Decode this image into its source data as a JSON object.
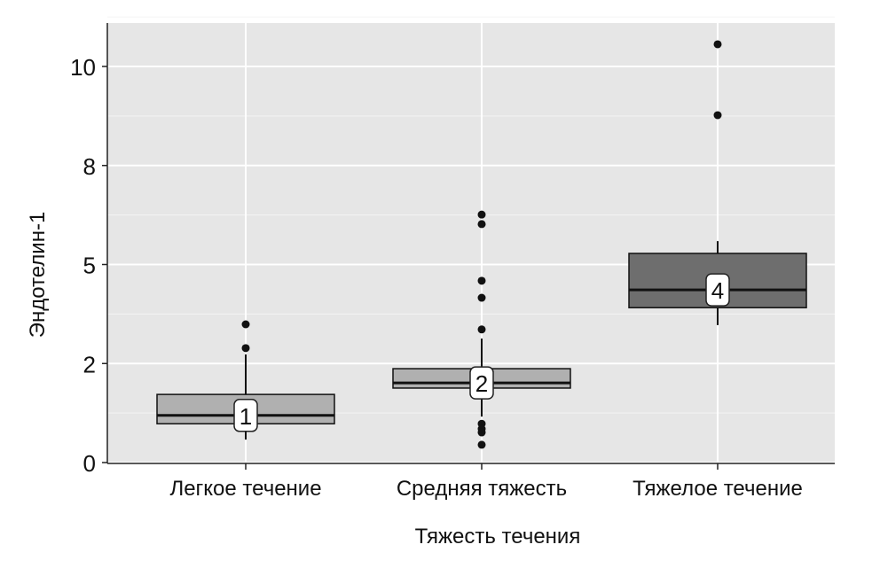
{
  "chart_data": {
    "type": "boxplot",
    "title": "",
    "xlabel": "Тяжесть течения",
    "ylabel": "Эндотелин-1",
    "ylim": [
      -0.1,
      10.75
    ],
    "yticks": [
      0,
      2.5,
      5,
      7.5,
      10
    ],
    "ytick_labels": [
      "0",
      "2",
      "5",
      "8",
      "10"
    ],
    "grid": true,
    "categories": [
      "Легкое течение",
      "Средняя тяжесть",
      "Тяжелое течение"
    ],
    "boxes": [
      {
        "label": "1",
        "whisker_low": 0.58,
        "q1": 0.98,
        "median": 1.19,
        "q3": 1.72,
        "whisker_high": 2.73,
        "outliers": [
          2.89,
          3.49
        ],
        "fill": "#b0b0b0"
      },
      {
        "label": "2",
        "whisker_low": 1.16,
        "q1": 1.88,
        "median": 2.01,
        "q3": 2.37,
        "whisker_high": 3.13,
        "outliers": [
          3.36,
          4.16,
          4.59,
          6.02,
          6.26,
          0.98,
          0.85,
          0.76,
          0.45
        ],
        "fill": "#b0b0b0"
      },
      {
        "label": "4",
        "whisker_low": 3.47,
        "q1": 3.91,
        "median": 4.36,
        "q3": 5.28,
        "whisker_high": 5.59,
        "outliers": [
          8.77,
          10.56
        ],
        "fill": "#6e6e6e"
      }
    ]
  }
}
